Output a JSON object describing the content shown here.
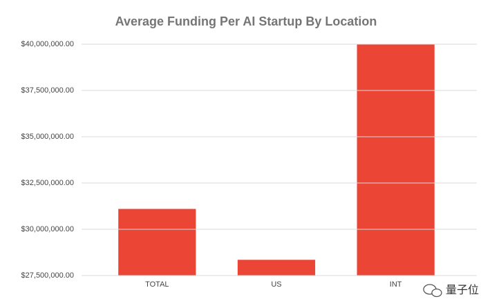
{
  "chart_data": {
    "type": "bar",
    "title": "Average Funding Per AI Startup By Location",
    "categories": [
      "TOTAL",
      "US",
      "INT"
    ],
    "values": [
      31100000,
      28350000,
      40000000
    ],
    "color": "#ea4535",
    "ylim": [
      27500000,
      40000000
    ],
    "yticks": [
      {
        "value": 27500000,
        "label": "$27,500,000.00"
      },
      {
        "value": 30000000,
        "label": "$30,000,000.00"
      },
      {
        "value": 32500000,
        "label": "$32,500,000.00"
      },
      {
        "value": 35000000,
        "label": "$35,000,000.00"
      },
      {
        "value": 37500000,
        "label": "$37,500,000.00"
      },
      {
        "value": 40000000,
        "label": "$40,000,000.00"
      }
    ],
    "grid": true
  },
  "watermark": "量子位"
}
